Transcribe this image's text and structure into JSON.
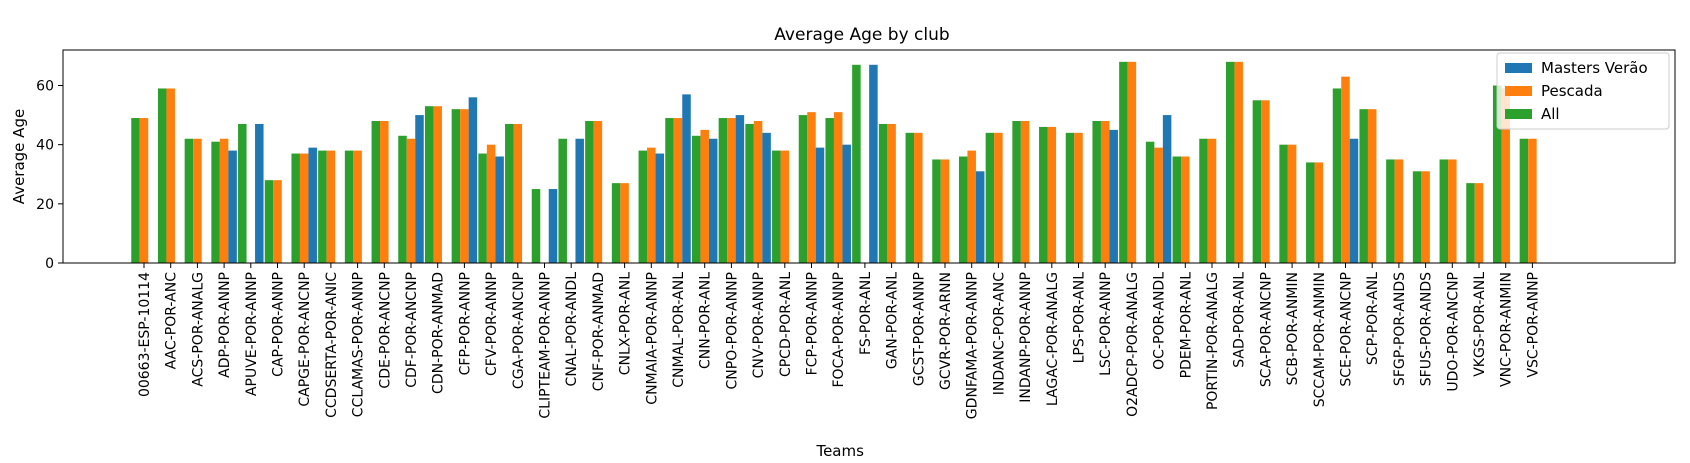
{
  "chart_data": {
    "type": "bar",
    "title": "Average Age by club",
    "xlabel": "Teams",
    "ylabel": "Average Age",
    "ylim": [
      0,
      72
    ],
    "yticks": [
      0,
      20,
      40,
      60
    ],
    "grid": false,
    "legend_position": "top-right",
    "colors": {
      "Masters Verão": "#1f77b4",
      "Pescada": "#ff7f0e",
      "All": "#2ca02c"
    },
    "categories": [
      "00663-ESP-10114",
      "AAC-POR-ANC",
      "ACS-POR-ANALG",
      "ADP-POR-ANNP",
      "APUVE-POR-ANNP",
      "CAP-POR-ANNP",
      "CAPGE-POR-ANCNP",
      "CCDSERTA-POR-ANIC",
      "CCLAMAS-POR-ANNP",
      "CDE-POR-ANCNP",
      "CDF-POR-ANCNP",
      "CDN-POR-ANMAD",
      "CFP-POR-ANNP",
      "CFV-POR-ANNP",
      "CGA-POR-ANCNP",
      "CLIPTEAM-POR-ANNP",
      "CNAL-POR-ANDL",
      "CNF-POR-ANMAD",
      "CNLX-POR-ANL",
      "CNMAIA-POR-ANNP",
      "CNMAL-POR-ANL",
      "CNN-POR-ANL",
      "CNPO-POR-ANNP",
      "CNV-POR-ANNP",
      "CPCD-POR-ANL",
      "FCP-POR-ANNP",
      "FOCA-POR-ANNP",
      "FS-POR-ANL",
      "GAN-POR-ANL",
      "GCST-POR-ANNP",
      "GCVR-POR-ARNN",
      "GDNFAMA-POR-ANNP",
      "INDANC-POR-ANC",
      "INDANP-POR-ANNP",
      "LAGAC-POR-ANALG",
      "LPS-POR-ANL",
      "LSC-POR-ANNP",
      "O2ADCP-POR-ANALG",
      "OC-POR-ANDL",
      "PDEM-POR-ANL",
      "PORTIN-POR-ANALG",
      "SAD-POR-ANL",
      "SCA-POR-ANCNP",
      "SCB-POR-ANMIN",
      "SCCAM-POR-ANMIN",
      "SCE-POR-ANCNP",
      "SCP-POR-ANL",
      "SFGP-POR-ANDS",
      "SFUS-POR-ANDS",
      "UDO-POR-ANCNP",
      "VKGS-POR-ANL",
      "VNC-POR-ANMIN",
      "VSC-POR-ANNP"
    ],
    "series": [
      {
        "name": "All",
        "values": [
          49,
          59,
          42,
          41,
          47,
          28,
          37,
          38,
          38,
          48,
          43,
          53,
          52,
          37,
          47,
          25,
          42,
          48,
          27,
          38,
          49,
          43,
          49,
          47,
          38,
          50,
          49,
          67,
          47,
          44,
          35,
          36,
          44,
          48,
          46,
          44,
          48,
          68,
          41,
          36,
          42,
          68,
          55,
          40,
          34,
          59,
          52,
          35,
          31,
          35,
          27,
          60,
          42
        ]
      },
      {
        "name": "Pescada",
        "values": [
          49,
          59,
          42,
          42,
          null,
          28,
          37,
          38,
          38,
          48,
          42,
          53,
          52,
          40,
          47,
          null,
          null,
          48,
          27,
          39,
          49,
          45,
          49,
          48,
          38,
          51,
          51,
          null,
          47,
          44,
          35,
          38,
          44,
          48,
          46,
          44,
          48,
          68,
          39,
          36,
          42,
          68,
          55,
          40,
          34,
          63,
          52,
          35,
          31,
          35,
          27,
          59,
          42
        ]
      },
      {
        "name": "Masters Verão",
        "values": [
          null,
          null,
          null,
          38,
          47,
          null,
          39,
          null,
          null,
          null,
          50,
          null,
          56,
          36,
          null,
          25,
          42,
          null,
          null,
          37,
          57,
          42,
          50,
          44,
          null,
          39,
          40,
          67,
          null,
          null,
          null,
          31,
          null,
          null,
          null,
          null,
          45,
          null,
          50,
          null,
          null,
          null,
          null,
          null,
          null,
          42,
          null,
          null,
          null,
          null,
          null,
          null,
          null
        ]
      }
    ],
    "legend": [
      "Masters Verão",
      "Pescada",
      "All"
    ]
  }
}
